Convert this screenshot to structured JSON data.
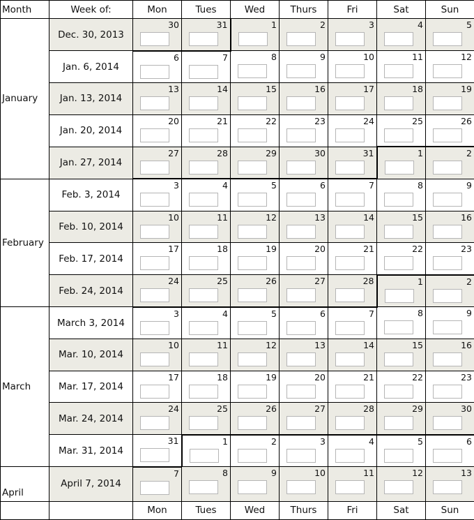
{
  "header": {
    "month": "Month",
    "week_of": "Week of:",
    "days": [
      "Mon",
      "Tues",
      "Wed",
      "Thurs",
      "Fri",
      "Sat",
      "Sun"
    ]
  },
  "footer": {
    "days": [
      "Mon",
      "Tues",
      "Wed",
      "Thurs",
      "Fri",
      "Sat",
      "Sun"
    ]
  },
  "months": [
    {
      "label": "January",
      "rows": 5
    },
    {
      "label": "February",
      "rows": 4
    },
    {
      "label": "March",
      "rows": 5
    },
    {
      "label": "April",
      "rows": 1
    }
  ],
  "weeks": [
    {
      "label": "Dec. 30, 2013",
      "days": [
        30,
        31,
        1,
        2,
        3,
        4,
        5
      ]
    },
    {
      "label": "Jan. 6, 2014",
      "days": [
        6,
        7,
        8,
        9,
        10,
        11,
        12
      ]
    },
    {
      "label": "Jan. 13, 2014",
      "days": [
        13,
        14,
        15,
        16,
        17,
        18,
        19
      ]
    },
    {
      "label": "Jan. 20, 2014",
      "days": [
        20,
        21,
        22,
        23,
        24,
        25,
        26
      ]
    },
    {
      "label": "Jan. 27, 2014",
      "days": [
        27,
        28,
        29,
        30,
        31,
        1,
        2
      ]
    },
    {
      "label": "Feb. 3, 2014",
      "days": [
        3,
        4,
        5,
        6,
        7,
        8,
        9
      ]
    },
    {
      "label": "Feb. 10, 2014",
      "days": [
        10,
        11,
        12,
        13,
        14,
        15,
        16
      ]
    },
    {
      "label": "Feb. 17, 2014",
      "days": [
        17,
        18,
        19,
        20,
        21,
        22,
        23
      ]
    },
    {
      "label": "Feb. 24, 2014",
      "days": [
        24,
        25,
        26,
        27,
        28,
        1,
        2
      ]
    },
    {
      "label": "March 3, 2014",
      "days": [
        3,
        4,
        5,
        6,
        7,
        8,
        9
      ]
    },
    {
      "label": "Mar. 10, 2014",
      "days": [
        10,
        11,
        12,
        13,
        14,
        15,
        16
      ]
    },
    {
      "label": "Mar. 17, 2014",
      "days": [
        17,
        18,
        19,
        20,
        21,
        22,
        23
      ]
    },
    {
      "label": "Mar. 24, 2014",
      "days": [
        24,
        25,
        26,
        27,
        28,
        29,
        30
      ]
    },
    {
      "label": "Mar. 31, 2014",
      "days": [
        31,
        1,
        2,
        3,
        4,
        5,
        6
      ]
    },
    {
      "label": "April 7, 2014",
      "days": [
        7,
        8,
        9,
        10,
        11,
        12,
        13
      ]
    }
  ],
  "colors": {
    "shaded_row": "#ecebe4",
    "input_border": "#b5b5b5"
  }
}
